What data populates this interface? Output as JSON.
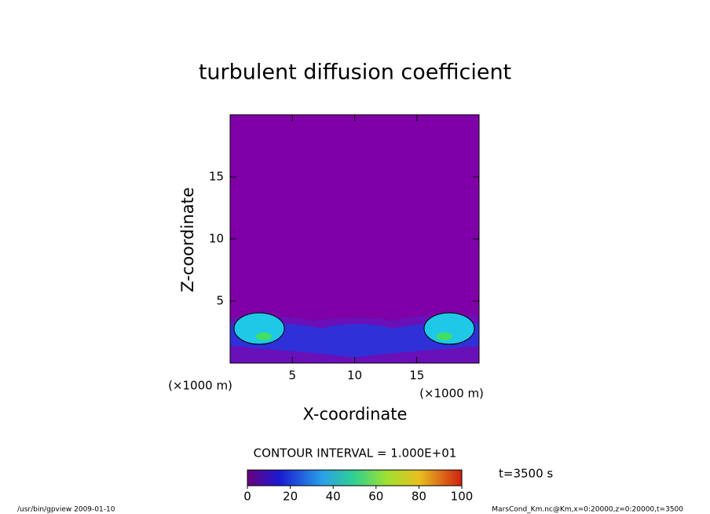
{
  "chart_data": {
    "type": "contour",
    "title": "turbulent diffusion coefficient",
    "xlabel": "X-coordinate",
    "ylabel": "Z-coordinate",
    "x_unit": "(×1000 m)",
    "y_unit": "(×1000 m)",
    "xlim": [
      0,
      20
    ],
    "xticks": [
      5,
      10,
      15
    ],
    "ylim": [
      0,
      20
    ],
    "yticks": [
      5,
      10,
      15
    ],
    "contour_interval": "CONTOUR INTERVAL = 1.000E+01",
    "time_label": "t=3500 s",
    "colorbar": {
      "lim": [
        0,
        100
      ],
      "ticks": [
        0,
        20,
        40,
        60,
        80,
        100
      ]
    },
    "footer_left": "/usr/bin/gpview   2009-01-10",
    "footer_right": "MarsCond_Km.nc@Km,x=0:20000,z=0:20000,t=3500"
  }
}
